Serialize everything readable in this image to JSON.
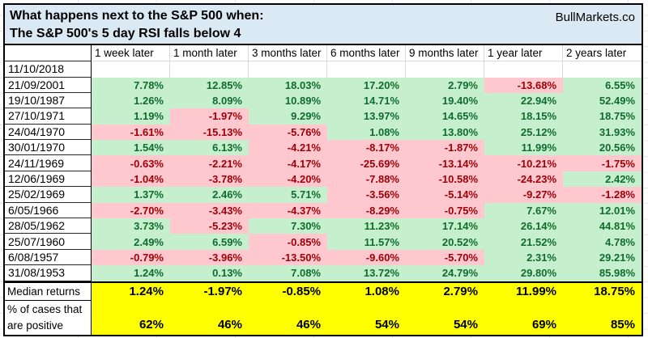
{
  "title": {
    "line1": "What happens next to the S&P 500 when:",
    "line2": "The S&P 500's 5 day RSI falls below 4",
    "brand": "BullMarkets.co"
  },
  "colors": {
    "title_fill": "#dbe9f4",
    "positive_fill": "#c6efce",
    "positive_text": "#106b2e",
    "negative_fill": "#ffc7ce",
    "negative_text": "#9c0006",
    "summary_fill": "#ffff00",
    "gridline": "#d9d9d9",
    "border": "#000000"
  },
  "chart_data": {
    "type": "table",
    "title": "What happens next to the S&P 500 when: The S&P 500's 5 day RSI falls below 4",
    "column_headers": [
      "1 week later",
      "1 month later",
      "3 months later",
      "6 months later",
      "9 months later",
      "1 year later",
      "2 years later"
    ],
    "signal_row": {
      "date": "11/10/2018",
      "values": [
        "",
        "",
        "",
        "",
        "",
        "",
        ""
      ]
    },
    "rows": [
      {
        "date": "21/09/2001",
        "values": [
          "7.78%",
          "12.85%",
          "18.03%",
          "17.20%",
          "2.79%",
          "-13.68%",
          "6.55%"
        ]
      },
      {
        "date": "19/10/1987",
        "values": [
          "1.26%",
          "8.09%",
          "10.89%",
          "14.71%",
          "19.40%",
          "22.94%",
          "52.49%"
        ]
      },
      {
        "date": "27/10/1971",
        "values": [
          "1.19%",
          "-1.97%",
          "9.29%",
          "13.97%",
          "14.65%",
          "18.15%",
          "18.75%"
        ]
      },
      {
        "date": "24/04/1970",
        "values": [
          "-1.61%",
          "-15.13%",
          "-5.76%",
          "1.08%",
          "13.80%",
          "25.12%",
          "31.93%"
        ]
      },
      {
        "date": "30/01/1970",
        "values": [
          "1.54%",
          "6.13%",
          "-4.21%",
          "-8.17%",
          "-1.87%",
          "11.99%",
          "20.56%"
        ]
      },
      {
        "date": "24/11/1969",
        "values": [
          "-0.63%",
          "-2.21%",
          "-4.17%",
          "-25.69%",
          "-13.14%",
          "-10.21%",
          "-1.75%"
        ]
      },
      {
        "date": "12/06/1969",
        "values": [
          "-1.04%",
          "-3.78%",
          "-4.20%",
          "-7.88%",
          "-10.58%",
          "-24.23%",
          "2.42%"
        ]
      },
      {
        "date": "25/02/1969",
        "values": [
          "1.37%",
          "2.46%",
          "5.71%",
          "-3.56%",
          "-5.14%",
          "-9.27%",
          "-1.28%"
        ]
      },
      {
        "date": "6/05/1966",
        "values": [
          "-2.70%",
          "-3.43%",
          "-4.37%",
          "-8.29%",
          "-0.75%",
          "7.67%",
          "12.01%"
        ]
      },
      {
        "date": "28/05/1962",
        "values": [
          "3.73%",
          "-5.23%",
          "7.30%",
          "11.23%",
          "17.14%",
          "26.14%",
          "44.81%"
        ]
      },
      {
        "date": "25/07/1960",
        "values": [
          "2.49%",
          "6.59%",
          "-0.85%",
          "11.57%",
          "20.52%",
          "21.52%",
          "4.78%"
        ]
      },
      {
        "date": "6/08/1957",
        "values": [
          "-0.79%",
          "-3.96%",
          "-13.50%",
          "-9.60%",
          "-5.70%",
          "2.31%",
          "29.21%"
        ]
      },
      {
        "date": "31/08/1953",
        "values": [
          "1.24%",
          "0.13%",
          "7.08%",
          "13.72%",
          "24.79%",
          "29.80%",
          "85.98%"
        ]
      }
    ],
    "summary": {
      "median_label": "Median returns",
      "median_values": [
        "1.24%",
        "-1.97%",
        "-0.85%",
        "1.08%",
        "2.79%",
        "11.99%",
        "18.75%"
      ],
      "pct_label_line1": "% of cases that",
      "pct_label_line2": "are positive",
      "pct_values": [
        "62%",
        "46%",
        "46%",
        "54%",
        "54%",
        "69%",
        "85%"
      ]
    }
  }
}
